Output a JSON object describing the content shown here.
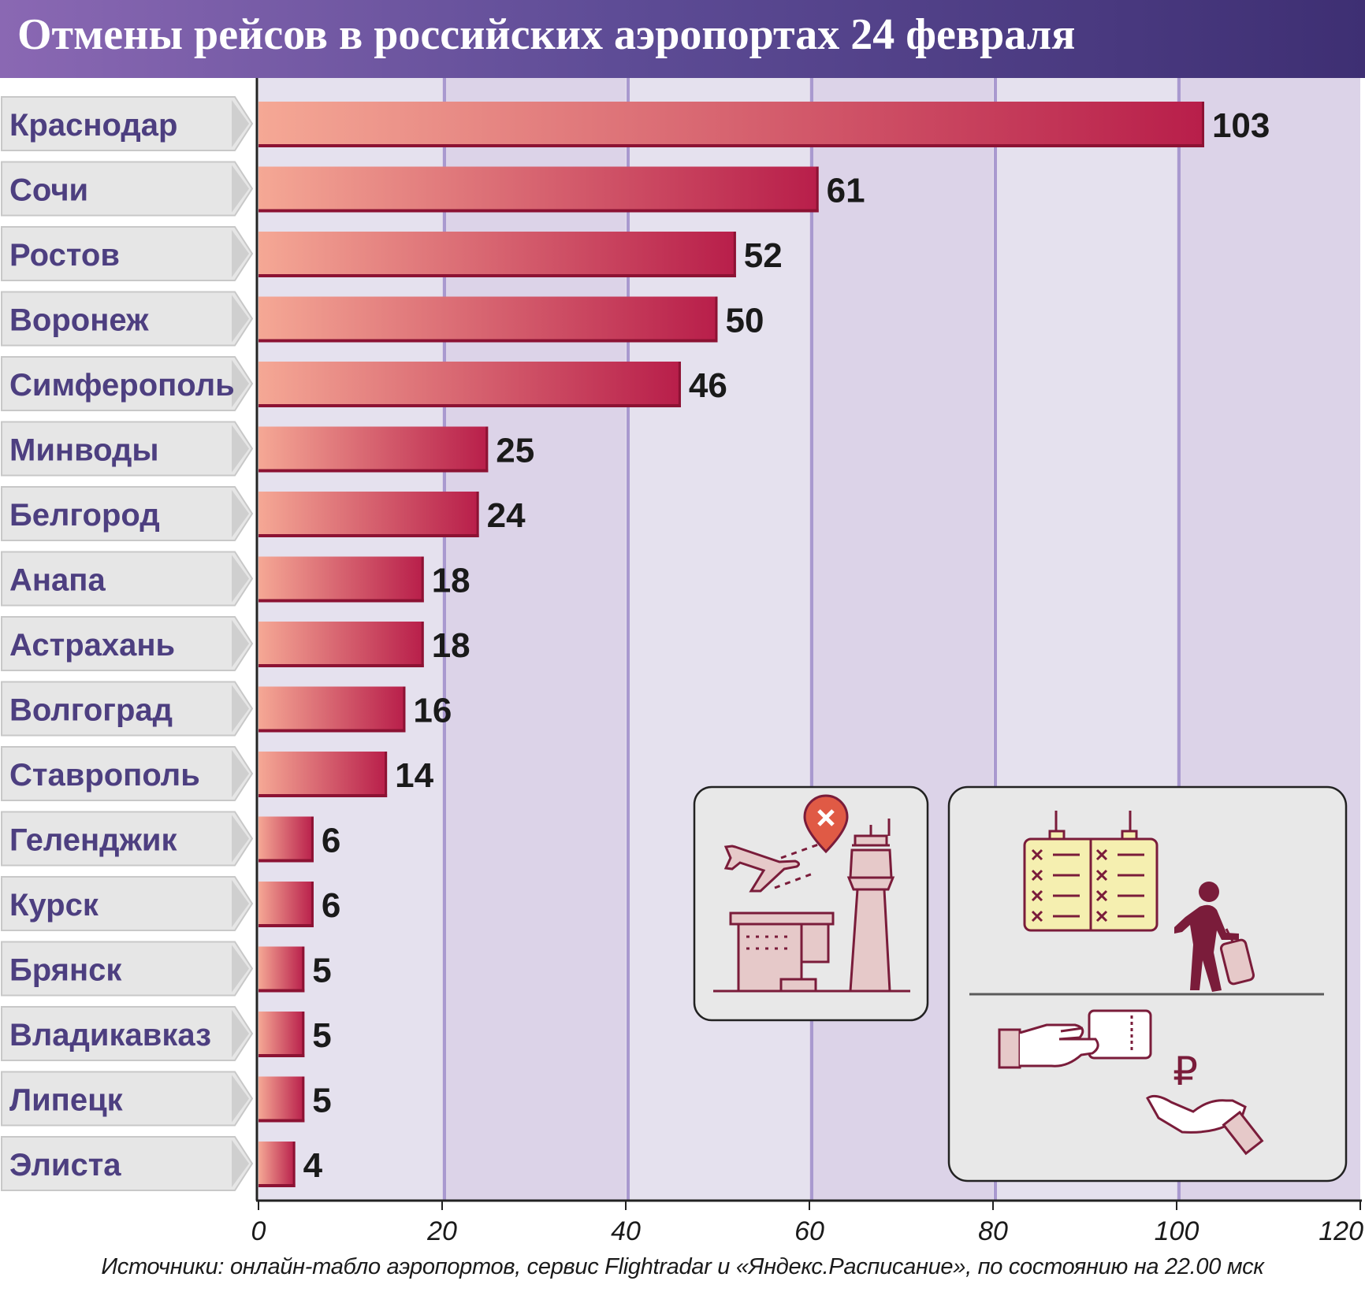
{
  "title": "Отмены рейсов в российских аэропортах 24 февраля",
  "source": "Источники: онлайн-табло аэропортов, сервис Flightradar и «Яндекс.Расписание», по состоянию на 22.00 мск",
  "colors": {
    "title_bar_start": "#8a68b3",
    "title_bar_end": "#3e2f73",
    "bar_start": "#f5a895",
    "bar_end": "#b81e4a",
    "bar_outline": "#8c1233",
    "plot_band_light": "#e5e1ee",
    "plot_band_dark": "#dcd3e8",
    "gridline": "#a999cf",
    "label_box": "#e6e6e6",
    "label_text": "#4d3f80",
    "icon_stroke": "#7a1c3a",
    "icon_fill": "#e6c9c9"
  },
  "chart_data": {
    "type": "bar",
    "orientation": "horizontal",
    "title": "Отмены рейсов в российских аэропортах 24 февраля",
    "categories": [
      "Краснодар",
      "Сочи",
      "Ростов",
      "Воронеж",
      "Симферополь",
      "Минводы",
      "Белгород",
      "Анапа",
      "Астрахань",
      "Волгоград",
      "Ставрополь",
      "Геленджик",
      "Курск",
      "Брянск",
      "Владикавказ",
      "Липецк",
      "Элиста"
    ],
    "values": [
      103,
      61,
      52,
      50,
      46,
      25,
      24,
      18,
      18,
      16,
      14,
      6,
      6,
      5,
      5,
      5,
      4
    ],
    "xlim": [
      0,
      120
    ],
    "xticks": [
      0,
      20,
      40,
      60,
      80,
      100,
      120
    ],
    "xlabel": "",
    "ylabel": "",
    "grid": true,
    "data_labels": true
  },
  "icons": {
    "left_panel": [
      "airplane-icon",
      "cancel-marker-icon",
      "control-tower-icon",
      "terminal-building-icon"
    ],
    "right_panel": [
      "departure-board-icon",
      "traveler-with-suitcase-icon",
      "ticket-hand-icon",
      "refund-hand-icon"
    ],
    "currency_symbol": "₽"
  }
}
